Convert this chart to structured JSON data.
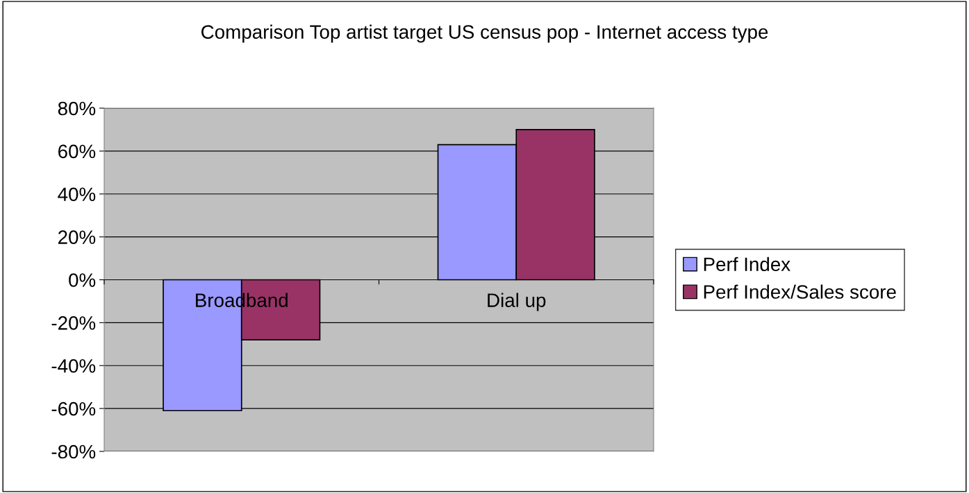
{
  "chart_data": {
    "type": "bar",
    "title": "Comparison Top artist target US census pop - Internet access type",
    "categories": [
      "Broadband",
      "Dial up"
    ],
    "series": [
      {
        "name": "Perf Index",
        "color": "#9999ff",
        "values": [
          -61,
          63
        ]
      },
      {
        "name": "Perf Index/Sales score",
        "color": "#993366",
        "values": [
          -28,
          70
        ]
      }
    ],
    "ylim": [
      -80,
      80
    ],
    "yticks": [
      {
        "value": -80,
        "label": "-80%"
      },
      {
        "value": -60,
        "label": "-60%"
      },
      {
        "value": -40,
        "label": "-40%"
      },
      {
        "value": -20,
        "label": "-20%"
      },
      {
        "value": 0,
        "label": "0%"
      },
      {
        "value": 20,
        "label": "20%"
      },
      {
        "value": 40,
        "label": "40%"
      },
      {
        "value": 60,
        "label": "60%"
      },
      {
        "value": 80,
        "label": "80%"
      }
    ],
    "grid": "y",
    "legend": "right"
  }
}
